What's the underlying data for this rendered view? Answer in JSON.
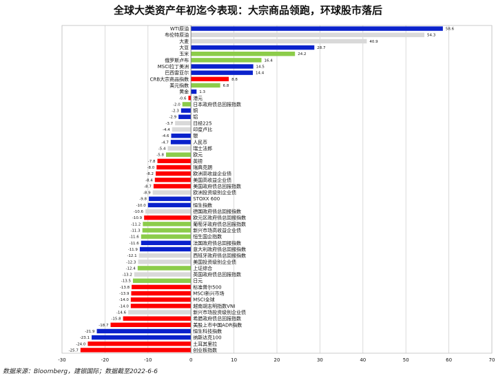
{
  "chart_data": {
    "type": "bar",
    "orientation": "horizontal",
    "title": "全球大类资产年初迄今表现：大宗商品领跑，环球股市落后",
    "xlim": [
      -30,
      70
    ],
    "xticks": [
      -30,
      -20,
      -10,
      0,
      10,
      20,
      30,
      40,
      50,
      60,
      70
    ],
    "grid": true,
    "colors": {
      "blue": "#0a22cc",
      "gray": "#d9d9d9",
      "green": "#8ccc4a",
      "red": "#ff0000"
    },
    "bars": [
      {
        "label": "WTI原油",
        "value": 58.6,
        "color": "blue"
      },
      {
        "label": "布伦特原油",
        "value": 54.3,
        "color": "gray"
      },
      {
        "label": "大麦",
        "value": 40.9,
        "color": "gray"
      },
      {
        "label": "大豆",
        "value": 28.7,
        "color": "blue"
      },
      {
        "label": "玉米",
        "value": 24.2,
        "color": "green"
      },
      {
        "label": "俄罗斯卢布",
        "value": 16.4,
        "color": "green"
      },
      {
        "label": "MSCI拉丁美洲",
        "value": 14.5,
        "color": "blue"
      },
      {
        "label": "巴西雷亚尔",
        "value": 14.4,
        "color": "blue"
      },
      {
        "label": "CRB大宗商品指数",
        "value": 8.8,
        "color": "red"
      },
      {
        "label": "美元指数",
        "value": 6.8,
        "color": "green"
      },
      {
        "label": "黄金",
        "value": 1.3,
        "color": "blue"
      },
      {
        "label": "港元",
        "value": -0.6,
        "color": "red"
      },
      {
        "label": "日本政府债总回报指数",
        "value": -2.0,
        "color": "green"
      },
      {
        "label": "铜",
        "value": -2.3,
        "color": "blue"
      },
      {
        "label": "铝",
        "value": -2.9,
        "color": "blue"
      },
      {
        "label": "日经225",
        "value": -3.7,
        "color": "gray"
      },
      {
        "label": "印度卢比",
        "value": -4.4,
        "color": "gray"
      },
      {
        "label": "银",
        "value": -4.6,
        "color": "blue"
      },
      {
        "label": "人民币",
        "value": -4.7,
        "color": "blue"
      },
      {
        "label": "瑞士法郎",
        "value": -5.4,
        "color": "gray"
      },
      {
        "label": "欧元",
        "value": -5.8,
        "color": "green"
      },
      {
        "label": "英镑",
        "value": -7.8,
        "color": "red"
      },
      {
        "label": "瑞典克朗",
        "value": -8.0,
        "color": "red"
      },
      {
        "label": "欧洲高收益企业债",
        "value": -8.2,
        "color": "red"
      },
      {
        "label": "美国高收益企业债",
        "value": -8.4,
        "color": "red"
      },
      {
        "label": "美国政府债总回报指数",
        "value": -8.7,
        "color": "red"
      },
      {
        "label": "欧洲投资级别企业债",
        "value": -8.9,
        "color": "gray"
      },
      {
        "label": "STOXX 600",
        "value": -9.8,
        "color": "blue"
      },
      {
        "label": "恒生指数",
        "value": -10.0,
        "color": "blue"
      },
      {
        "label": "德国政府债总回报指数",
        "value": -10.6,
        "color": "gray"
      },
      {
        "label": "欧元区政府债总回报指数",
        "value": -10.9,
        "color": "red"
      },
      {
        "label": "葡萄牙政府债总回报指数",
        "value": -11.2,
        "color": "green"
      },
      {
        "label": "新兴市场高收益企业债",
        "value": -11.3,
        "color": "green"
      },
      {
        "label": "恒生国企指数",
        "value": -11.6,
        "color": "green"
      },
      {
        "label": "法国政府债总回报指数",
        "value": -11.6,
        "color": "blue"
      },
      {
        "label": "意大利政府债总回报指数",
        "value": -11.9,
        "color": "blue"
      },
      {
        "label": "西班牙政府债总回报指数",
        "value": -12.1,
        "color": "gray"
      },
      {
        "label": "美国投资级别企业债",
        "value": -12.3,
        "color": "gray"
      },
      {
        "label": "上证综合",
        "value": -12.4,
        "color": "green"
      },
      {
        "label": "英国政府债总回报指数",
        "value": -13.2,
        "color": "gray"
      },
      {
        "label": "日元",
        "value": -13.5,
        "color": "green"
      },
      {
        "label": "标准普尔500",
        "value": -13.8,
        "color": "red"
      },
      {
        "label": "MSCI新兴市场",
        "value": -13.9,
        "color": "red"
      },
      {
        "label": "MSCI全球",
        "value": -14.0,
        "color": "red"
      },
      {
        "label": "越南胡志明指数VNI",
        "value": -14.0,
        "color": "red"
      },
      {
        "label": "新兴市场投资级别企业债",
        "value": -14.6,
        "color": "gray"
      },
      {
        "label": "希腊政府债总回报指数",
        "value": -15.8,
        "color": "red"
      },
      {
        "label": "美股上市中国ADR指数",
        "value": -18.7,
        "color": "red"
      },
      {
        "label": "恒生科技指数",
        "value": -21.9,
        "color": "blue"
      },
      {
        "label": "纳斯达克100",
        "value": -23.1,
        "color": "blue"
      },
      {
        "label": "土耳其里拉",
        "value": -24.0,
        "color": "red"
      },
      {
        "label": "创业板指数",
        "value": -25.7,
        "color": "red"
      }
    ]
  },
  "source_note": "数据来源：Bloomberg，建银国际；数据截至2022-6-6"
}
